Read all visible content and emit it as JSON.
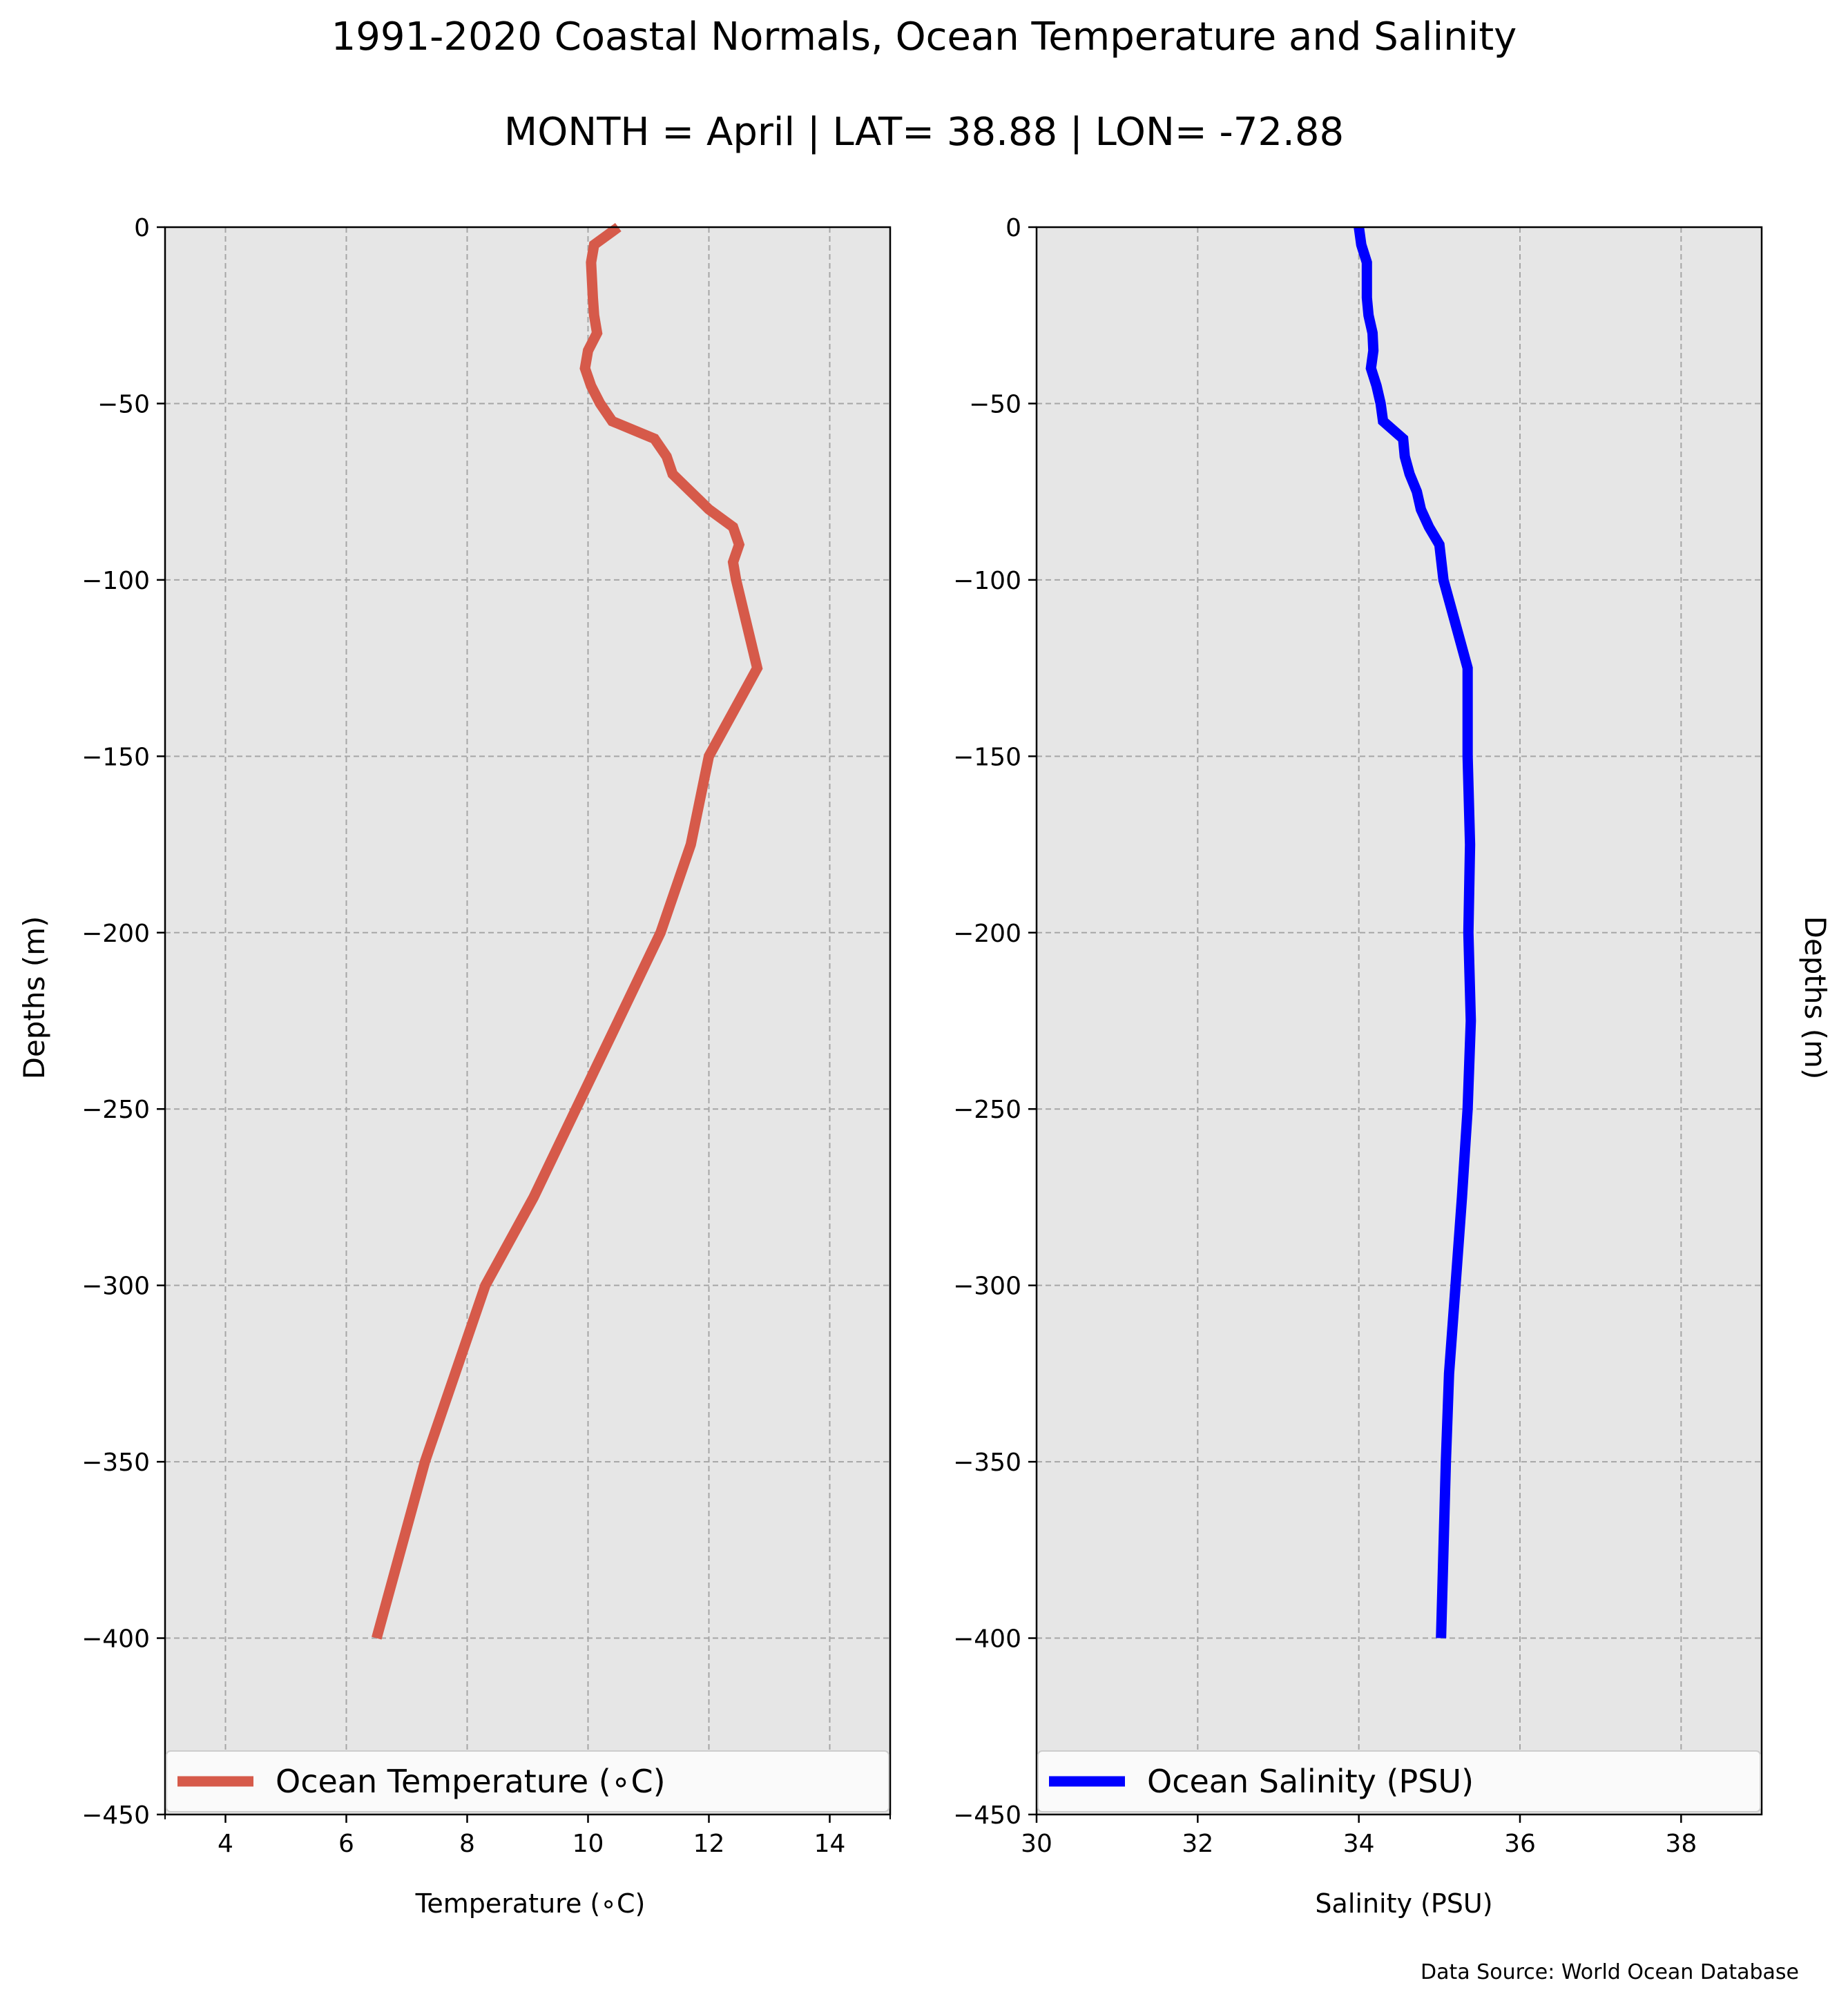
{
  "title": "1991-2020 Coastal Normals, Ocean Temperature and Salinity",
  "subtitle": "MONTH = April | LAT= 38.88 | LON= -72.88",
  "source_note": "Data Source: World Ocean Database",
  "colors": {
    "temperature": "#d65a4a",
    "salinity": "#0000ff",
    "plot_bg": "#e6e6e6",
    "grid": "#a6a6a6"
  },
  "chart_data": [
    {
      "type": "line",
      "xlabel": "Temperature ($^\\circ$C)",
      "xlabel_display": "Temperature (∘C)",
      "ylabel": "Depths (m)",
      "xlim": [
        3,
        15
      ],
      "ylim": [
        -450,
        0
      ],
      "xticks": [
        4,
        6,
        8,
        10,
        12,
        14
      ],
      "yticks": [
        0,
        -50,
        -100,
        -150,
        -200,
        -250,
        -300,
        -350,
        -400,
        -450
      ],
      "grid": true,
      "legend": "lower-center",
      "series": [
        {
          "name": "Ocean Temperature (∘C)",
          "color": "#d65a4a",
          "x": [
            10.5,
            10.1,
            10.05,
            10.08,
            10.1,
            10.15,
            10.0,
            9.95,
            10.05,
            10.2,
            10.4,
            11.1,
            11.3,
            11.4,
            11.7,
            12.0,
            12.4,
            12.5,
            12.4,
            12.45,
            12.8,
            12.0,
            11.7,
            11.2,
            10.5,
            9.8,
            9.1,
            8.3,
            7.8,
            7.3,
            6.5
          ],
          "y": [
            0,
            -5,
            -10,
            -20,
            -25,
            -30,
            -35,
            -40,
            -45,
            -50,
            -55,
            -60,
            -65,
            -70,
            -75,
            -80,
            -85,
            -90,
            -95,
            -100,
            -125,
            -150,
            -175,
            -200,
            -225,
            -250,
            -275,
            -300,
            -325,
            -350,
            -400
          ]
        }
      ]
    },
    {
      "type": "line",
      "xlabel": "Salinity (PSU)",
      "ylabel": "Depths (m)",
      "xlim": [
        30,
        39
      ],
      "ylim": [
        -450,
        0
      ],
      "xticks": [
        30,
        32,
        34,
        36,
        38
      ],
      "yticks": [
        0,
        -50,
        -100,
        -150,
        -200,
        -250,
        -300,
        -350,
        -400,
        -450
      ],
      "grid": true,
      "legend": "lower-center",
      "series": [
        {
          "name": "Ocean Salinity (PSU)",
          "color": "#0000ff",
          "x": [
            34.0,
            34.03,
            34.1,
            34.1,
            34.12,
            34.17,
            34.18,
            34.15,
            34.22,
            34.27,
            34.3,
            34.55,
            34.57,
            34.63,
            34.72,
            34.77,
            34.87,
            35.0,
            35.05,
            35.35,
            35.35,
            35.38,
            35.36,
            35.39,
            35.35,
            35.28,
            35.2,
            35.12,
            35.08,
            35.02
          ],
          "y": [
            0,
            -5,
            -10,
            -20,
            -25,
            -30,
            -35,
            -40,
            -45,
            -50,
            -55,
            -60,
            -65,
            -70,
            -75,
            -80,
            -85,
            -90,
            -100,
            -125,
            -150,
            -175,
            -200,
            -225,
            -250,
            -275,
            -300,
            -325,
            -350,
            -400
          ]
        }
      ]
    }
  ]
}
